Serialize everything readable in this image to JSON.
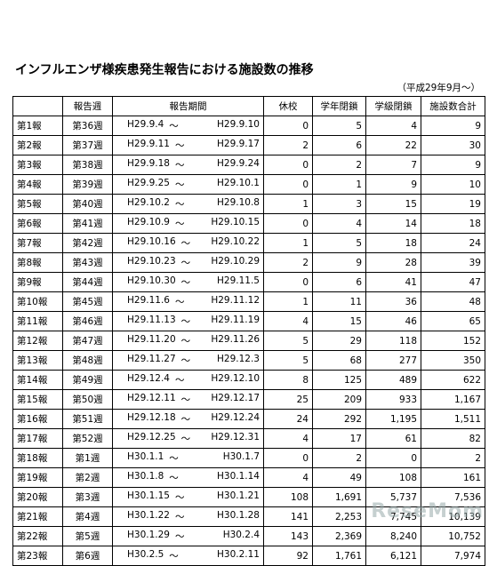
{
  "title": "インフルエンザ様疾患発生報告における施設数の推移",
  "period_note": "（平成29年9月～）",
  "headers": [
    "",
    "報告週",
    "報告期間",
    "休校",
    "学年閉鎖",
    "学級閉鎖",
    "施設数合計"
  ],
  "tilde": "～",
  "rows": [
    {
      "report": "第1報",
      "week": "第36週",
      "start": "H29.9.4",
      "end": "H29.9.10",
      "kyuko": "0",
      "gakunen": "5",
      "gakkyu": "4",
      "total": "9"
    },
    {
      "report": "第2報",
      "week": "第37週",
      "start": "H29.9.11",
      "end": "H29.9.17",
      "kyuko": "2",
      "gakunen": "6",
      "gakkyu": "22",
      "total": "30"
    },
    {
      "report": "第3報",
      "week": "第38週",
      "start": "H29.9.18",
      "end": "H29.9.24",
      "kyuko": "0",
      "gakunen": "2",
      "gakkyu": "7",
      "total": "9"
    },
    {
      "report": "第4報",
      "week": "第39週",
      "start": "H29.9.25",
      "end": "H29.10.1",
      "kyuko": "0",
      "gakunen": "1",
      "gakkyu": "9",
      "total": "10"
    },
    {
      "report": "第5報",
      "week": "第40週",
      "start": "H29.10.2",
      "end": "H29.10.8",
      "kyuko": "1",
      "gakunen": "3",
      "gakkyu": "15",
      "total": "19"
    },
    {
      "report": "第6報",
      "week": "第41週",
      "start": "H29.10.9",
      "end": "H29.10.15",
      "kyuko": "0",
      "gakunen": "4",
      "gakkyu": "14",
      "total": "18"
    },
    {
      "report": "第7報",
      "week": "第42週",
      "start": "H29.10.16",
      "end": "H29.10.22",
      "kyuko": "1",
      "gakunen": "5",
      "gakkyu": "18",
      "total": "24"
    },
    {
      "report": "第8報",
      "week": "第43週",
      "start": "H29.10.23",
      "end": "H29.10.29",
      "kyuko": "2",
      "gakunen": "9",
      "gakkyu": "28",
      "total": "39"
    },
    {
      "report": "第9報",
      "week": "第44週",
      "start": "H29.10.30",
      "end": "H29.11.5",
      "kyuko": "0",
      "gakunen": "6",
      "gakkyu": "41",
      "total": "47"
    },
    {
      "report": "第10報",
      "week": "第45週",
      "start": "H29.11.6",
      "end": "H29.11.12",
      "kyuko": "1",
      "gakunen": "11",
      "gakkyu": "36",
      "total": "48"
    },
    {
      "report": "第11報",
      "week": "第46週",
      "start": "H29.11.13",
      "end": "H29.11.19",
      "kyuko": "4",
      "gakunen": "15",
      "gakkyu": "46",
      "total": "65"
    },
    {
      "report": "第12報",
      "week": "第47週",
      "start": "H29.11.20",
      "end": "H29.11.26",
      "kyuko": "5",
      "gakunen": "29",
      "gakkyu": "118",
      "total": "152"
    },
    {
      "report": "第13報",
      "week": "第48週",
      "start": "H29.11.27",
      "end": "H29.12.3",
      "kyuko": "5",
      "gakunen": "68",
      "gakkyu": "277",
      "total": "350"
    },
    {
      "report": "第14報",
      "week": "第49週",
      "start": "H29.12.4",
      "end": "H29.12.10",
      "kyuko": "8",
      "gakunen": "125",
      "gakkyu": "489",
      "total": "622"
    },
    {
      "report": "第15報",
      "week": "第50週",
      "start": "H29.12.11",
      "end": "H29.12.17",
      "kyuko": "25",
      "gakunen": "209",
      "gakkyu": "933",
      "total": "1,167"
    },
    {
      "report": "第16報",
      "week": "第51週",
      "start": "H29.12.18",
      "end": "H29.12.24",
      "kyuko": "24",
      "gakunen": "292",
      "gakkyu": "1,195",
      "total": "1,511"
    },
    {
      "report": "第17報",
      "week": "第52週",
      "start": "H29.12.25",
      "end": "H29.12.31",
      "kyuko": "4",
      "gakunen": "17",
      "gakkyu": "61",
      "total": "82"
    },
    {
      "report": "第18報",
      "week": "第1週",
      "start": "H30.1.1",
      "end": "H30.1.7",
      "kyuko": "0",
      "gakunen": "2",
      "gakkyu": "0",
      "total": "2"
    },
    {
      "report": "第19報",
      "week": "第2週",
      "start": "H30.1.8",
      "end": "H30.1.14",
      "kyuko": "4",
      "gakunen": "49",
      "gakkyu": "108",
      "total": "161"
    },
    {
      "report": "第20報",
      "week": "第3週",
      "start": "H30.1.15",
      "end": "H30.1.21",
      "kyuko": "108",
      "gakunen": "1,691",
      "gakkyu": "5,737",
      "total": "7,536"
    },
    {
      "report": "第21報",
      "week": "第4週",
      "start": "H30.1.22",
      "end": "H30.1.28",
      "kyuko": "141",
      "gakunen": "2,253",
      "gakkyu": "7,745",
      "total": "10,139"
    },
    {
      "report": "第22報",
      "week": "第5週",
      "start": "H30.1.29",
      "end": "H30.2.4",
      "kyuko": "143",
      "gakunen": "2,369",
      "gakkyu": "8,240",
      "total": "10,752"
    },
    {
      "report": "第23報",
      "week": "第6週",
      "start": "H30.2.5",
      "end": "H30.2.11",
      "kyuko": "92",
      "gakunen": "1,761",
      "gakkyu": "6,121",
      "total": "7,974"
    }
  ],
  "watermark": "ReseMom"
}
